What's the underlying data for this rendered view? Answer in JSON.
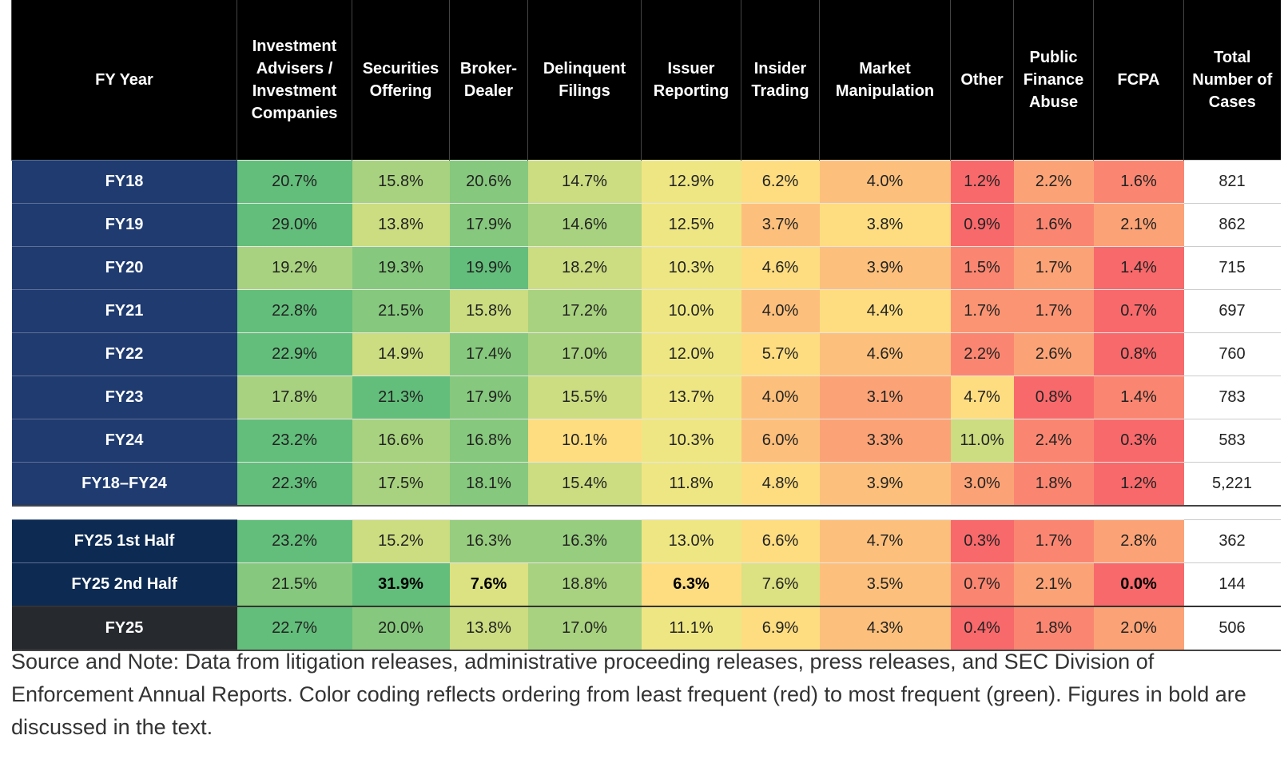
{
  "table": {
    "header": [
      "FY Year",
      "Investment Advisers / Investment Companies",
      "Securities Offering",
      "Broker-Dealer",
      "Delinquent Filings",
      "Issuer Reporting",
      "Insider Trading",
      "Market Manipulation",
      "Other",
      "Public Finance Abuse",
      "FCPA",
      "Total Number of Cases"
    ],
    "rows": [
      [
        "FY18",
        "20.7%",
        "15.8%",
        "20.6%",
        "14.7%",
        "12.9%",
        "6.2%",
        "4.0%",
        "1.2%",
        "2.2%",
        "1.6%",
        "821"
      ],
      [
        "FY19",
        "29.0%",
        "13.8%",
        "17.9%",
        "14.6%",
        "12.5%",
        "3.7%",
        "3.8%",
        "0.9%",
        "1.6%",
        "2.1%",
        "862"
      ],
      [
        "FY20",
        "19.2%",
        "19.3%",
        "19.9%",
        "18.2%",
        "10.3%",
        "4.6%",
        "3.9%",
        "1.5%",
        "1.7%",
        "1.4%",
        "715"
      ],
      [
        "FY21",
        "22.8%",
        "21.5%",
        "15.8%",
        "17.2%",
        "10.0%",
        "4.0%",
        "4.4%",
        "1.7%",
        "1.7%",
        "0.7%",
        "697"
      ],
      [
        "FY22",
        "22.9%",
        "14.9%",
        "17.4%",
        "17.0%",
        "12.0%",
        "5.7%",
        "4.6%",
        "2.2%",
        "2.6%",
        "0.8%",
        "760"
      ],
      [
        "FY23",
        "17.8%",
        "21.3%",
        "17.9%",
        "15.5%",
        "13.7%",
        "4.0%",
        "3.1%",
        "4.7%",
        "0.8%",
        "1.4%",
        "783"
      ],
      [
        "FY24",
        "23.2%",
        "16.6%",
        "16.8%",
        "10.1%",
        "10.3%",
        "6.0%",
        "3.3%",
        "11.0%",
        "2.4%",
        "0.3%",
        "583"
      ],
      [
        "FY18–FY24",
        "22.3%",
        "17.5%",
        "18.1%",
        "15.4%",
        "11.8%",
        "4.8%",
        "3.9%",
        "3.0%",
        "1.8%",
        "1.2%",
        "5,221"
      ]
    ],
    "rows_fy25": [
      [
        "FY25 1st Half",
        "23.2%",
        "15.2%",
        "16.3%",
        "16.3%",
        "13.0%",
        "6.6%",
        "4.7%",
        "0.3%",
        "1.7%",
        "2.8%",
        "362"
      ],
      [
        "FY25 2nd Half",
        "21.5%",
        "31.9%",
        "7.6%",
        "18.8%",
        "6.3%",
        "7.6%",
        "3.5%",
        "0.7%",
        "2.1%",
        "0.0%",
        "144"
      ],
      [
        "FY25",
        "22.7%",
        "20.0%",
        "13.8%",
        "17.0%",
        "11.1%",
        "6.9%",
        "4.3%",
        "0.4%",
        "1.8%",
        "2.0%",
        "506"
      ]
    ],
    "note": "Source and Note: Data from litigation releases, administrative proceeding releases, press releases, and SEC Division of Enforcement Annual Reports. Color coding reflects ordering from least frequent (red) to most frequent (green). Figures in bold are discussed in the text."
  }
}
